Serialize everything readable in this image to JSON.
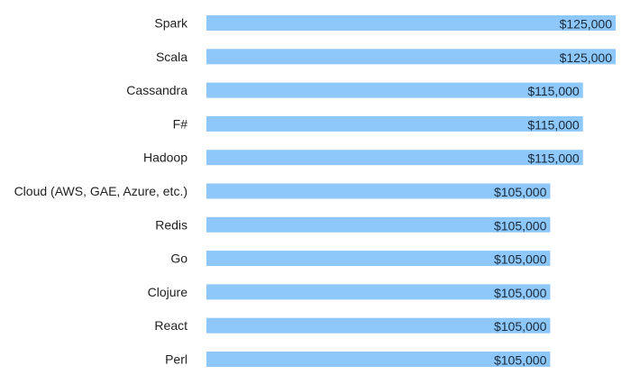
{
  "chart_data": {
    "type": "bar",
    "orientation": "horizontal",
    "categories": [
      "Spark",
      "Scala",
      "Cassandra",
      "F#",
      "Hadoop",
      "Cloud (AWS, GAE, Azure, etc.)",
      "Redis",
      "Go",
      "Clojure",
      "React",
      "Perl"
    ],
    "values": [
      125000,
      125000,
      115000,
      115000,
      115000,
      105000,
      105000,
      105000,
      105000,
      105000,
      105000
    ],
    "value_labels": [
      "$125,000",
      "$125,000",
      "$115,000",
      "$115,000",
      "$115,000",
      "$105,000",
      "$105,000",
      "$105,000",
      "$105,000",
      "$105,000",
      "$105,000"
    ],
    "xlim": [
      0,
      125000
    ],
    "grid": false,
    "legend": "none",
    "bar_color": "#8ec8fb"
  }
}
